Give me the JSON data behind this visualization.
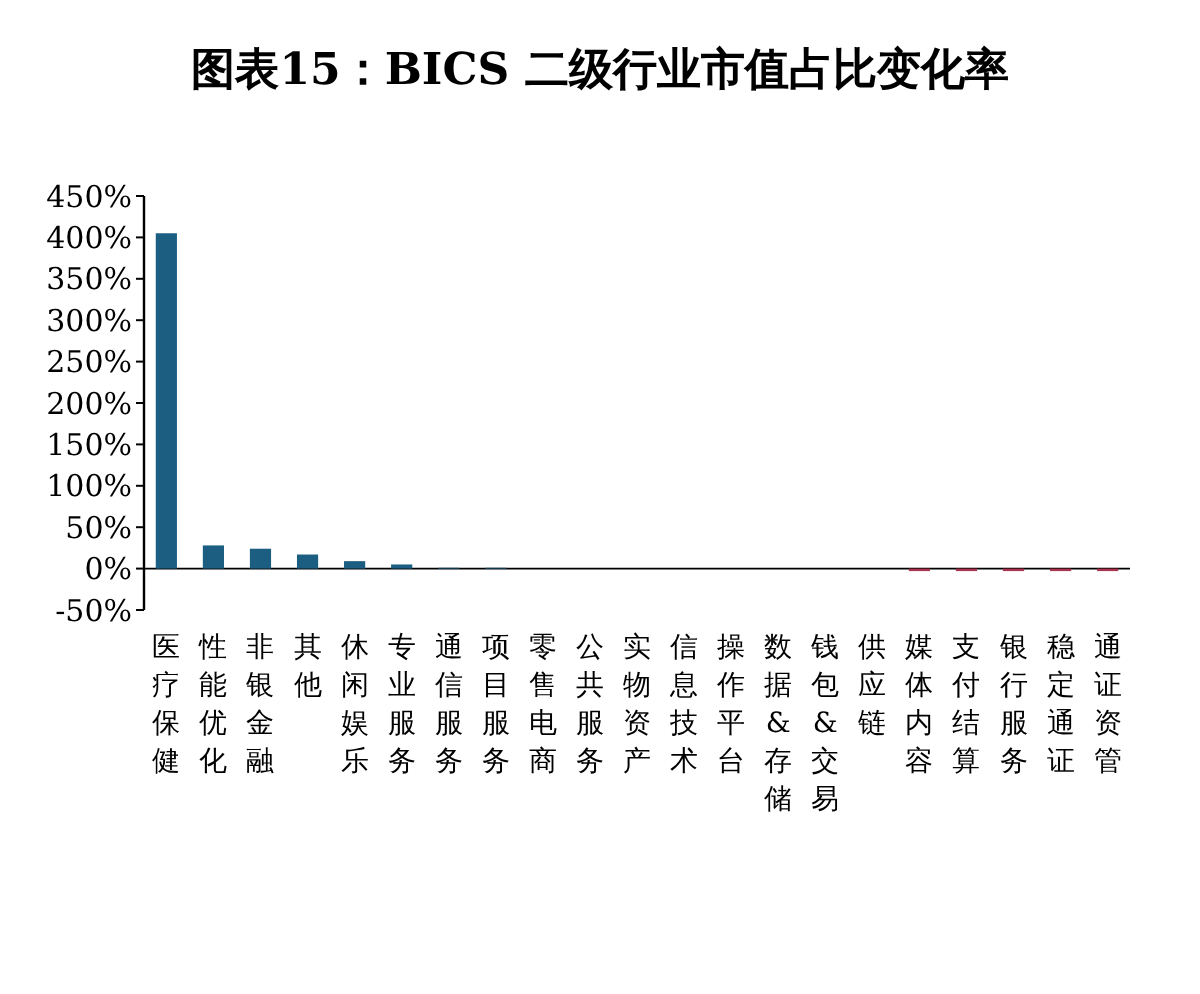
{
  "chart_data": {
    "type": "bar",
    "title": "图表15：BICS 二级行业市值占比变化率",
    "categories": [
      "医疗保健",
      "性能优化",
      "非银金融",
      "其他",
      "休闲娱乐",
      "专业服务",
      "通信服务",
      "项目服务",
      "零售电商",
      "公共服务",
      "实物资产",
      "信息技术",
      "操作平台",
      "数据&存储",
      "钱包&交易",
      "供应链",
      "媒体内容",
      "支付结算",
      "银行服务",
      "稳定通证",
      "通证资管"
    ],
    "values": [
      405,
      28,
      24,
      17,
      9,
      5,
      1,
      1,
      0,
      0,
      0,
      0,
      0,
      0,
      0,
      0,
      -3,
      -3,
      -3,
      -3,
      -3
    ],
    "colors": [
      "#1b5e82",
      "#1b5e82",
      "#1b5e82",
      "#1b5e82",
      "#1b5e82",
      "#1b5e82",
      "#1b5e82",
      "#1b5e82",
      "#1b5e82",
      "#1b5e82",
      "#1b5e82",
      "#1b5e82",
      "#1b5e82",
      "#1b5e82",
      "#1b5e82",
      "#1b5e82",
      "#a8344e",
      "#a8344e",
      "#a8344e",
      "#a8344e",
      "#a8344e"
    ],
    "ylim": [
      -50,
      450
    ],
    "yticks": [
      {
        "value": -50,
        "label": "-50%"
      },
      {
        "value": 0,
        "label": "0%"
      },
      {
        "value": 50,
        "label": "50%"
      },
      {
        "value": 100,
        "label": "100%"
      },
      {
        "value": 150,
        "label": "150%"
      },
      {
        "value": 200,
        "label": "200%"
      },
      {
        "value": 250,
        "label": "250%"
      },
      {
        "value": 300,
        "label": "300%"
      },
      {
        "value": 350,
        "label": "350%"
      },
      {
        "value": 400,
        "label": "400%"
      },
      {
        "value": 450,
        "label": "450%"
      }
    ],
    "grid": false
  }
}
